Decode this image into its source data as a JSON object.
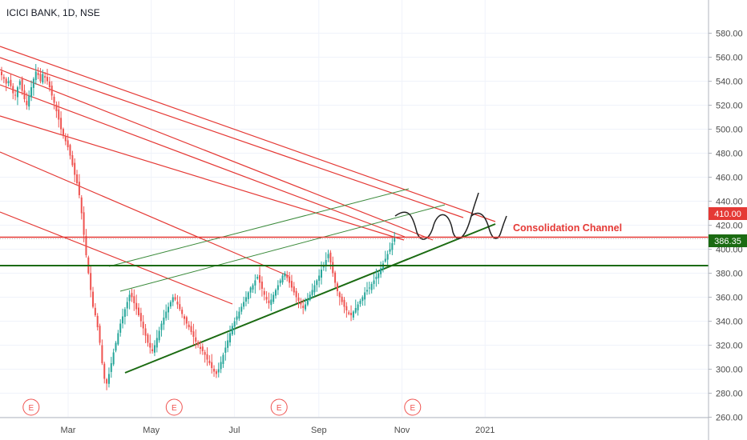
{
  "header": {
    "symbol_title": "ICICI BANK, 1D, NSE"
  },
  "annotation": {
    "text": "Consolidation  Channel",
    "color": "#e53935"
  },
  "price_labels": [
    {
      "value": "410.00",
      "color": "#e53935"
    },
    {
      "value": "386.35",
      "color": "#1b6b12"
    }
  ],
  "earnings_marker": {
    "label": "E"
  },
  "colors": {
    "up": "#26a69a",
    "down": "#ef5350",
    "support": "#1b6b12",
    "resistance": "#e53935",
    "drawing": "#222222"
  },
  "chart_data": {
    "type": "candlestick",
    "title": "ICICI BANK, 1D, NSE",
    "x_tick_labels": [
      "Mar",
      "May",
      "Jul",
      "Sep",
      "Nov",
      "2021"
    ],
    "y_tick_labels": [
      "580.00",
      "560.00",
      "540.00",
      "520.00",
      "500.00",
      "480.00",
      "460.00",
      "440.00",
      "420.00",
      "400.00",
      "380.00",
      "360.00",
      "340.00",
      "320.00",
      "300.00",
      "280.00",
      "260.00"
    ],
    "ylim": [
      250,
      585
    ],
    "x_range": [
      "2020-01-11",
      "2021-01-31"
    ],
    "grid": true,
    "horizontal_levels": [
      410.0,
      386.35
    ],
    "earnings_dates": [
      "2020-01-25",
      "2020-05-09",
      "2020-07-25",
      "2020-10-31"
    ],
    "closes": [
      545,
      542,
      538,
      540,
      536,
      530,
      528,
      535,
      540,
      532,
      525,
      520,
      528,
      535,
      542,
      548,
      545,
      540,
      546,
      543,
      540,
      535,
      528,
      522,
      515,
      508,
      500,
      495,
      490,
      485,
      478,
      470,
      462,
      455,
      445,
      430,
      412,
      395,
      380,
      366,
      352,
      345,
      335,
      322,
      305,
      292,
      288,
      296,
      305,
      314,
      322,
      330,
      338,
      344,
      350,
      356,
      362,
      360,
      355,
      350,
      345,
      340,
      334,
      328,
      322,
      318,
      315,
      320,
      326,
      332,
      338,
      343,
      348,
      352,
      356,
      360,
      358,
      354,
      350,
      346,
      342,
      338,
      335,
      331,
      327,
      323,
      320,
      317,
      315,
      312,
      308,
      305,
      301,
      298,
      296,
      300,
      306,
      312,
      318,
      324,
      330,
      336,
      340,
      344,
      348,
      352,
      356,
      360,
      364,
      368,
      370,
      374,
      377,
      372,
      367,
      362,
      358,
      355,
      358,
      362,
      366,
      370,
      374,
      378,
      380,
      376,
      372,
      368,
      364,
      360,
      357,
      354,
      351,
      354,
      358,
      362,
      366,
      370,
      374,
      378,
      383,
      387,
      391,
      396,
      389,
      380,
      372,
      365,
      360,
      356,
      352,
      349,
      346,
      345,
      348,
      351,
      354,
      357,
      360,
      364,
      366,
      368,
      371,
      374,
      377,
      380,
      384,
      388,
      392,
      396,
      400,
      405,
      410
    ]
  }
}
